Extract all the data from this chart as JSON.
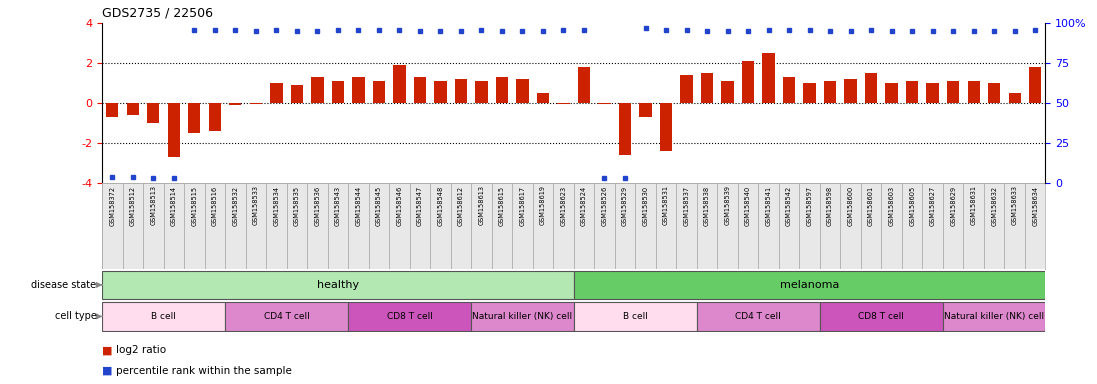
{
  "title": "GDS2735 / 22506",
  "samples": [
    "GSM158372",
    "GSM158512",
    "GSM158513",
    "GSM158514",
    "GSM158515",
    "GSM158516",
    "GSM158532",
    "GSM158533",
    "GSM158534",
    "GSM158535",
    "GSM158536",
    "GSM158543",
    "GSM158544",
    "GSM158545",
    "GSM158546",
    "GSM158547",
    "GSM158548",
    "GSM158612",
    "GSM158613",
    "GSM158615",
    "GSM158617",
    "GSM158619",
    "GSM158623",
    "GSM158524",
    "GSM158526",
    "GSM158529",
    "GSM158530",
    "GSM158531",
    "GSM158537",
    "GSM158538",
    "GSM158539",
    "GSM158540",
    "GSM158541",
    "GSM158542",
    "GSM158597",
    "GSM158598",
    "GSM158600",
    "GSM158601",
    "GSM158603",
    "GSM158605",
    "GSM158627",
    "GSM158629",
    "GSM158631",
    "GSM158632",
    "GSM158633",
    "GSM158634"
  ],
  "log2_ratio": [
    -0.7,
    -0.6,
    -1.0,
    -2.7,
    -1.5,
    -1.4,
    -0.1,
    -0.05,
    1.0,
    0.9,
    1.3,
    1.1,
    1.3,
    1.1,
    1.9,
    1.3,
    1.1,
    1.2,
    1.1,
    1.3,
    1.2,
    0.5,
    -0.05,
    1.8,
    -0.05,
    -2.6,
    -0.7,
    -2.4,
    1.4,
    1.5,
    1.1,
    2.1,
    2.5,
    1.3,
    1.0,
    1.1,
    1.2,
    1.5,
    1.0,
    1.1,
    1.0,
    1.1,
    1.1,
    1.0,
    0.5,
    1.8
  ],
  "percentile_y": [
    -3.7,
    -3.7,
    -3.75,
    -3.75,
    3.65,
    3.65,
    3.65,
    3.6,
    3.65,
    3.6,
    3.6,
    3.65,
    3.65,
    3.65,
    3.65,
    3.6,
    3.6,
    3.6,
    3.65,
    3.6,
    3.6,
    3.6,
    3.65,
    3.65,
    -3.75,
    -3.75,
    3.75,
    3.65,
    3.65,
    3.6,
    3.6,
    3.6,
    3.65,
    3.65,
    3.65,
    3.6,
    3.6,
    3.65,
    3.6,
    3.6,
    3.6,
    3.6,
    3.6,
    3.6,
    3.6,
    3.65
  ],
  "bar_color": "#cc2200",
  "dot_color": "#2244cc",
  "ylim": [
    -4,
    4
  ],
  "dotted_lines": [
    -2.0,
    0.0,
    2.0
  ],
  "ytick_labels_left": [
    "-4",
    "-2",
    "0",
    "2",
    "4"
  ],
  "ytick_vals": [
    -4,
    -2,
    0,
    2,
    4
  ],
  "ytick_labels_right": [
    "0",
    "25",
    "50",
    "75",
    "100%"
  ],
  "disease_states": [
    {
      "label": "healthy",
      "start": 0,
      "end": 23,
      "color": "#b3e8b3"
    },
    {
      "label": "melanoma",
      "start": 23,
      "end": 46,
      "color": "#66cc66"
    }
  ],
  "cell_types": [
    {
      "label": "B cell",
      "start": 0,
      "end": 6,
      "color": "#ffddee"
    },
    {
      "label": "CD4 T cell",
      "start": 6,
      "end": 12,
      "color": "#dd88cc"
    },
    {
      "label": "CD8 T cell",
      "start": 12,
      "end": 18,
      "color": "#cc55bb"
    },
    {
      "label": "Natural killer (NK) cell",
      "start": 18,
      "end": 23,
      "color": "#dd88cc"
    },
    {
      "label": "B cell",
      "start": 23,
      "end": 29,
      "color": "#ffddee"
    },
    {
      "label": "CD4 T cell",
      "start": 29,
      "end": 35,
      "color": "#dd88cc"
    },
    {
      "label": "CD8 T cell",
      "start": 35,
      "end": 41,
      "color": "#cc55bb"
    },
    {
      "label": "Natural killer (NK) cell",
      "start": 41,
      "end": 46,
      "color": "#dd88cc"
    }
  ],
  "legend_labels": [
    "log2 ratio",
    "percentile rank within the sample"
  ],
  "legend_colors": [
    "#cc2200",
    "#2244cc"
  ],
  "bg_xtick_color": "#e0e0e0",
  "left_label_disease": "disease state",
  "left_label_cell": "cell type"
}
